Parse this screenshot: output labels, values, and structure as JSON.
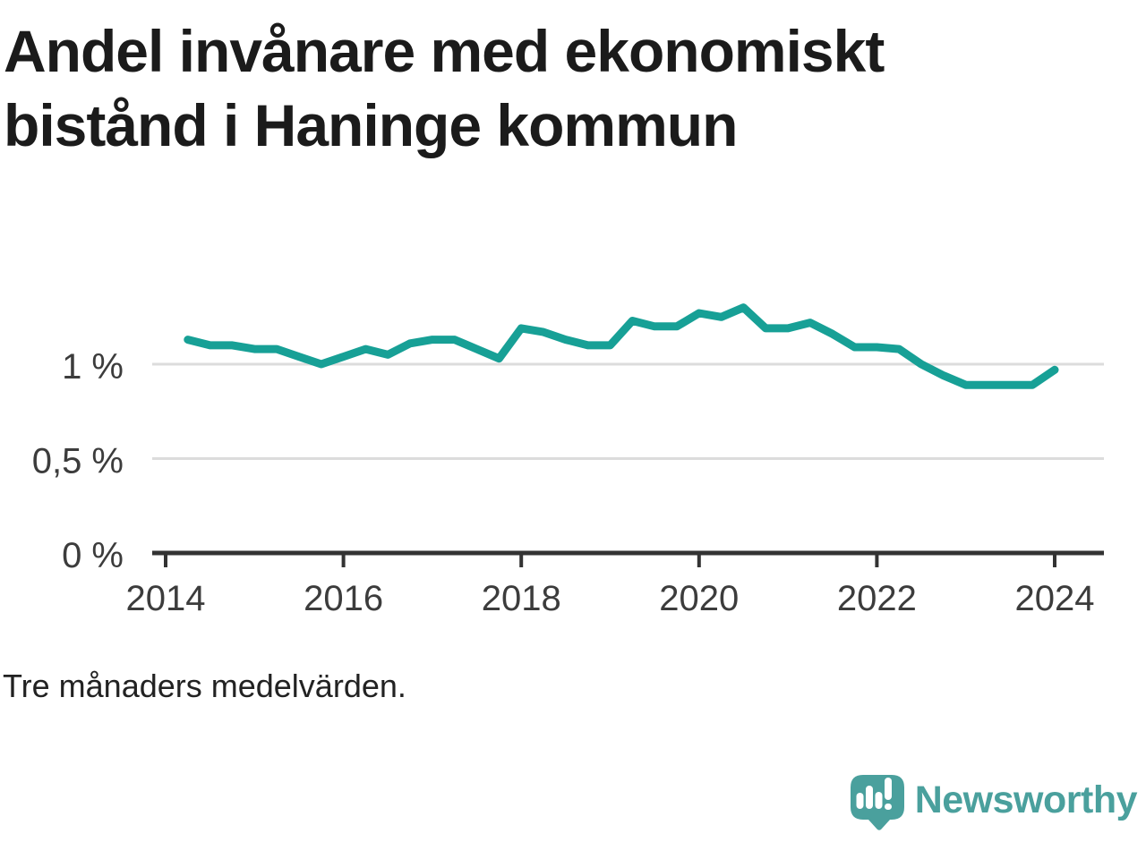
{
  "title": "Andel invånare med ekonomiskt bistånd i Haninge kommun",
  "footnote": "Tre månaders medelvärden.",
  "branding": {
    "wordmark": "Newsworthy"
  },
  "colors": {
    "line": "#17a096",
    "gridline": "#dcdcdc",
    "axis": "#333333",
    "tick_text": "#3c3c3c",
    "title_text": "#1b1b1b",
    "brand_teal": "#4aa09d"
  },
  "chart_data": {
    "type": "line",
    "title": "Andel invånare med ekonomiskt bistånd i Haninge kommun",
    "subtitle": "Tre månaders medelvärden.",
    "unit": "%",
    "xlabel": "",
    "ylabel": "",
    "grid": "horizontal",
    "legend": "none",
    "xlim": [
      2013.85,
      2024.55
    ],
    "ylim": [
      0,
      1.6
    ],
    "xticks": [
      {
        "value": 2014,
        "label": "2014"
      },
      {
        "value": 2016,
        "label": "2016"
      },
      {
        "value": 2018,
        "label": "2018"
      },
      {
        "value": 2020,
        "label": "2020"
      },
      {
        "value": 2022,
        "label": "2022"
      },
      {
        "value": 2024,
        "label": "2024"
      }
    ],
    "yticks": [
      {
        "value": 1,
        "label": "1 %"
      },
      {
        "value": 0.5,
        "label": "0,5 %"
      },
      {
        "value": 0,
        "label": "0 %"
      }
    ],
    "series": [
      {
        "name": "Andel invånare med ekonomiskt bistånd",
        "x": [
          2014.25,
          2014.5,
          2014.75,
          2015.0,
          2015.25,
          2015.5,
          2015.75,
          2016.0,
          2016.25,
          2016.5,
          2016.75,
          2017.0,
          2017.25,
          2017.5,
          2017.75,
          2018.0,
          2018.25,
          2018.5,
          2018.75,
          2019.0,
          2019.25,
          2019.5,
          2019.75,
          2020.0,
          2020.25,
          2020.5,
          2020.75,
          2021.0,
          2021.25,
          2021.5,
          2021.75,
          2022.0,
          2022.25,
          2022.5,
          2022.75,
          2023.0,
          2023.25,
          2023.5,
          2023.75,
          2024.0
        ],
        "y": [
          1.13,
          1.1,
          1.1,
          1.08,
          1.08,
          1.04,
          1.0,
          1.04,
          1.08,
          1.05,
          1.11,
          1.13,
          1.13,
          1.08,
          1.03,
          1.19,
          1.17,
          1.13,
          1.1,
          1.1,
          1.23,
          1.2,
          1.2,
          1.27,
          1.25,
          1.3,
          1.19,
          1.19,
          1.22,
          1.16,
          1.09,
          1.09,
          1.08,
          1.0,
          0.94,
          0.89,
          0.89,
          0.89,
          0.89,
          0.97
        ]
      }
    ]
  }
}
